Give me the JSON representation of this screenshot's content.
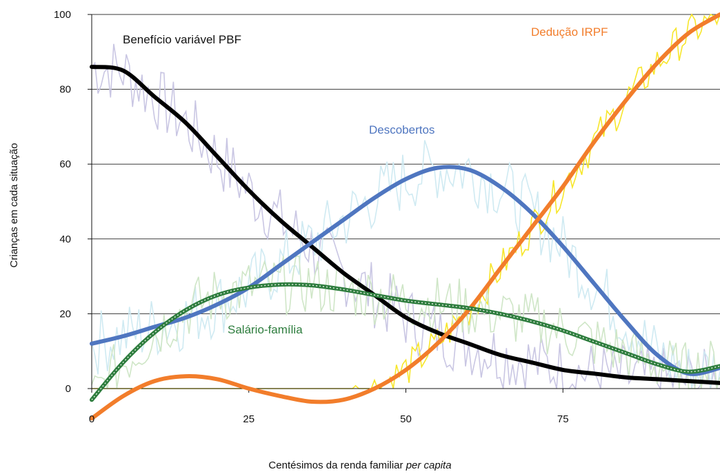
{
  "chart_data": {
    "type": "line",
    "title": "",
    "xlabel": "Centésimos da renda familiar",
    "xlabel_italic": "per capita",
    "ylabel": "Crianças em cada situação",
    "xlim": [
      0,
      100
    ],
    "ylim": [
      0,
      100
    ],
    "x_ticks": [
      0,
      25,
      50,
      75
    ],
    "y_ticks": [
      0,
      20,
      40,
      60,
      80,
      100
    ],
    "grid": "horizontal",
    "legend": "none",
    "series": [
      {
        "name": "Benefício variável PBF",
        "color": "#000000",
        "noise_color": "#c9c6e3",
        "x": [
          0,
          5,
          10,
          15,
          20,
          25,
          30,
          35,
          40,
          45,
          50,
          55,
          60,
          65,
          70,
          75,
          80,
          85,
          90,
          95,
          100
        ],
        "values": [
          86,
          85,
          78,
          71,
          62,
          53,
          45,
          38,
          31,
          25,
          19,
          15,
          12,
          9,
          7,
          5,
          4,
          3,
          2.5,
          2,
          1.5
        ]
      },
      {
        "name": "Descobertos",
        "color": "#4f76c0",
        "noise_color": "#cfeaf2",
        "x": [
          0,
          5,
          10,
          15,
          20,
          25,
          30,
          35,
          40,
          45,
          50,
          55,
          60,
          65,
          70,
          75,
          80,
          85,
          90,
          95,
          100
        ],
        "values": [
          12,
          14,
          16.5,
          19,
          22.5,
          27,
          33,
          39,
          45,
          51,
          56,
          59,
          58.5,
          54,
          47,
          38,
          28,
          18,
          9,
          4,
          5.5
        ]
      },
      {
        "name": "Dedução IRPF",
        "color": "#f27d2b",
        "noise_color": "#f7e62a",
        "x": [
          0,
          5,
          10,
          15,
          20,
          25,
          30,
          35,
          40,
          45,
          50,
          55,
          60,
          65,
          70,
          75,
          80,
          85,
          90,
          95,
          100
        ],
        "values": [
          -8,
          -2,
          2,
          3.3,
          2.5,
          0,
          -2,
          -3.5,
          -3,
          0,
          5,
          12,
          21,
          32,
          43,
          54,
          66,
          77,
          87,
          95,
          100
        ]
      },
      {
        "name": "Salário-família",
        "color": "#2e7d3e",
        "noise_color": "#cfe6c7",
        "x": [
          0,
          5,
          10,
          15,
          20,
          25,
          30,
          35,
          40,
          45,
          50,
          55,
          60,
          65,
          70,
          75,
          80,
          85,
          90,
          95,
          100
        ],
        "values": [
          -3,
          7,
          15,
          21,
          25,
          27,
          27.8,
          27.6,
          26.5,
          25,
          23.5,
          22.5,
          21.5,
          20,
          18,
          15.5,
          12.5,
          9.5,
          6.5,
          4.5,
          6
        ]
      }
    ]
  }
}
